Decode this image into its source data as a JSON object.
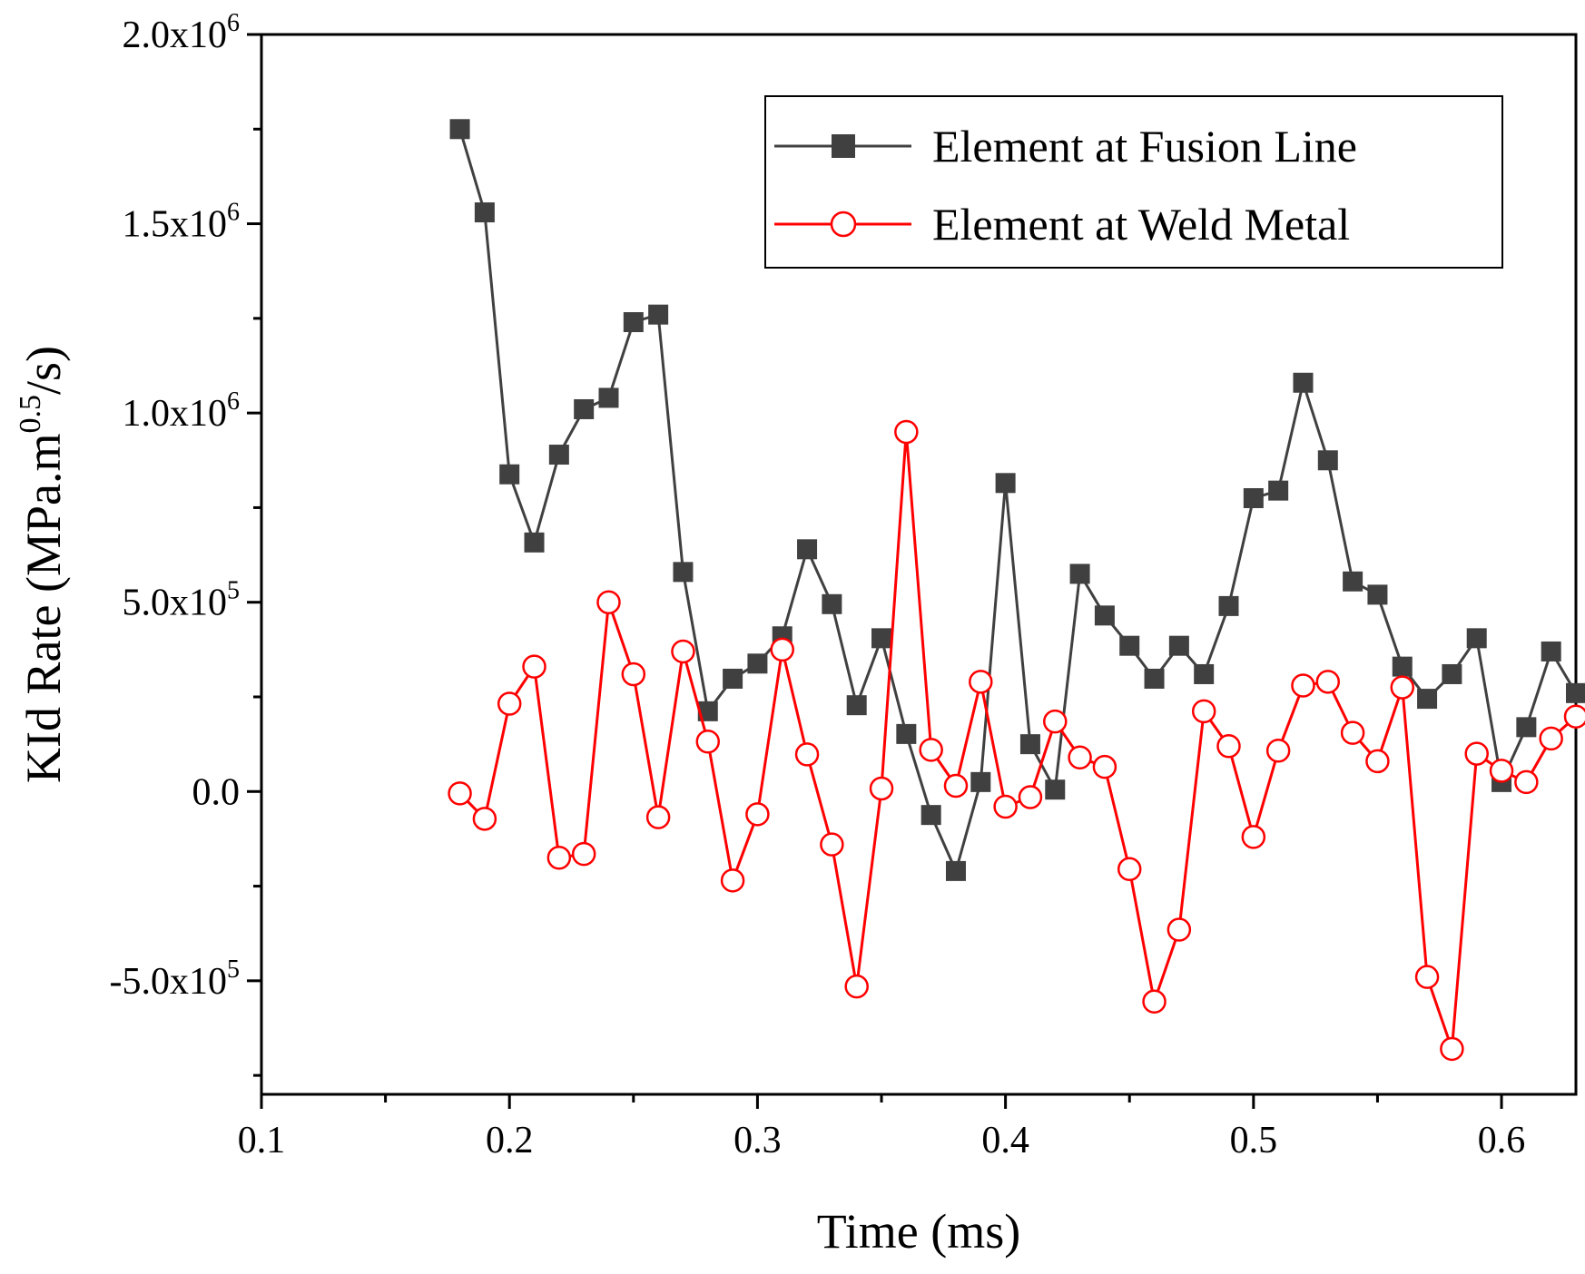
{
  "chart_data": {
    "type": "line",
    "xlabel": "Time (ms)",
    "ylabel": {
      "prefix": "KId Rate (MPa.m",
      "exponent": "0.5",
      "suffix": "/s)"
    },
    "xlim": [
      0.1,
      0.63
    ],
    "ylim": [
      -800000,
      2000000
    ],
    "x_ticks": [
      {
        "value": 0.1,
        "label": "0.1"
      },
      {
        "value": 0.2,
        "label": "0.2"
      },
      {
        "value": 0.3,
        "label": "0.3"
      },
      {
        "value": 0.4,
        "label": "0.4"
      },
      {
        "value": 0.5,
        "label": "0.5"
      },
      {
        "value": 0.6,
        "label": "0.6"
      }
    ],
    "x_minor_ticks": [
      0.15,
      0.25,
      0.35,
      0.45,
      0.55
    ],
    "y_ticks": [
      {
        "value": 2000000,
        "mantissa": "2.0x10",
        "exponent": "6"
      },
      {
        "value": 1500000,
        "mantissa": "1.5x10",
        "exponent": "6"
      },
      {
        "value": 1000000,
        "mantissa": "1.0x10",
        "exponent": "6"
      },
      {
        "value": 500000,
        "mantissa": "5.0x10",
        "exponent": "5"
      },
      {
        "value": 0,
        "mantissa": "0.0",
        "exponent": ""
      },
      {
        "value": -500000,
        "mantissa": "-5.0x10",
        "exponent": "5"
      }
    ],
    "y_minor_ticks": [
      1750000,
      1250000,
      750000,
      250000,
      -250000,
      -750000
    ],
    "legend_position": "top-right",
    "x": [
      0.18,
      0.19,
      0.2,
      0.21,
      0.22,
      0.23,
      0.24,
      0.25,
      0.26,
      0.27,
      0.28,
      0.29,
      0.3,
      0.31,
      0.32,
      0.33,
      0.34,
      0.35,
      0.36,
      0.37,
      0.38,
      0.39,
      0.4,
      0.41,
      0.42,
      0.43,
      0.44,
      0.45,
      0.46,
      0.47,
      0.48,
      0.49,
      0.5,
      0.51,
      0.52,
      0.53,
      0.54,
      0.55,
      0.56,
      0.57,
      0.58,
      0.59,
      0.6,
      0.61,
      0.62,
      0.63
    ],
    "series": [
      {
        "name": "Element at Fusion Line",
        "color": "#404040",
        "marker": "filled-square",
        "values": [
          1750000,
          1530000,
          838000,
          658000,
          890000,
          1010000,
          1040000,
          1240000,
          1260000,
          580000,
          212000,
          298000,
          338000,
          410000,
          640000,
          495000,
          228000,
          405000,
          152000,
          -62000,
          -210000,
          25000,
          815000,
          125000,
          5000,
          575000,
          465000,
          385000,
          298000,
          385000,
          310000,
          490000,
          775000,
          795000,
          1080000,
          875000,
          555000,
          520000,
          330000,
          245000,
          310000,
          405000,
          25000,
          170000,
          370000,
          260000
        ]
      },
      {
        "name": "Element at Weld Metal",
        "color": "#ff0000",
        "marker": "open-circle",
        "values": [
          -5000,
          -72000,
          232000,
          330000,
          -175000,
          -165000,
          500000,
          310000,
          -68000,
          370000,
          132000,
          -235000,
          -60000,
          375000,
          98000,
          -140000,
          -515000,
          8000,
          950000,
          110000,
          15000,
          290000,
          -40000,
          -15000,
          185000,
          90000,
          65000,
          -205000,
          -555000,
          -365000,
          212000,
          120000,
          -120000,
          108000,
          280000,
          290000,
          155000,
          80000,
          275000,
          -490000,
          -680000,
          100000,
          55000,
          25000,
          140000,
          198000
        ]
      }
    ]
  }
}
